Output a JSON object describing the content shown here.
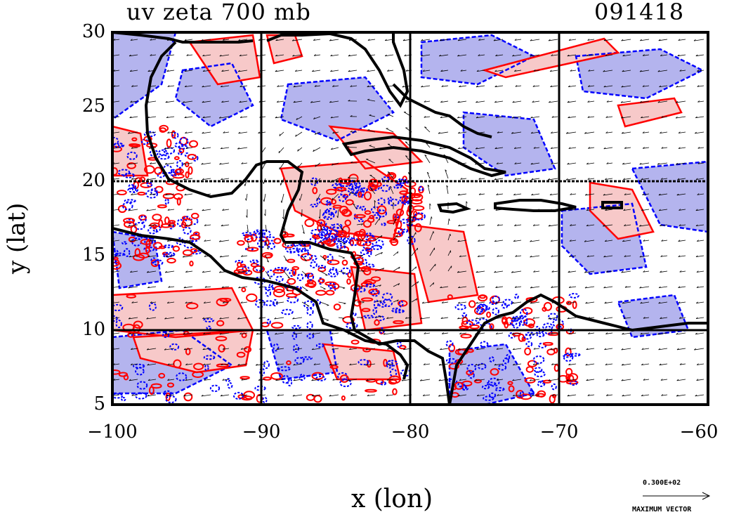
{
  "title": {
    "left": "uv zeta 700 mb",
    "right": "091418"
  },
  "axes": {
    "xlabel": "x (lon)",
    "ylabel": "y (lat)",
    "xticks": [
      "−100",
      "−90",
      "−80",
      "−70",
      "−60"
    ],
    "yticks": [
      "30",
      "25",
      "20",
      "15",
      "10",
      "5"
    ],
    "xrange": [
      -100,
      -60
    ],
    "yrange": [
      5,
      30
    ],
    "grid": true
  },
  "legend": {
    "value": "0.300E+02",
    "label": "MAXIMUM VECTOR"
  },
  "colors": {
    "positive_contour": "#ff0000",
    "positive_fill": "#f7c9c9",
    "negative_contour": "#0000ff",
    "negative_fill": "#b4b4ee",
    "coastline": "#000000"
  },
  "chart_data": {
    "type": "heatmap",
    "field": "uv zeta 700 mb",
    "xlabel": "x (lon)",
    "ylabel": "y (lat)",
    "xlim": [
      -100,
      -60
    ],
    "ylim": [
      5,
      30
    ],
    "xticks": [
      -100,
      -90,
      -80,
      -70,
      -60
    ],
    "yticks": [
      5,
      10,
      15,
      20,
      25,
      30
    ]
  }
}
